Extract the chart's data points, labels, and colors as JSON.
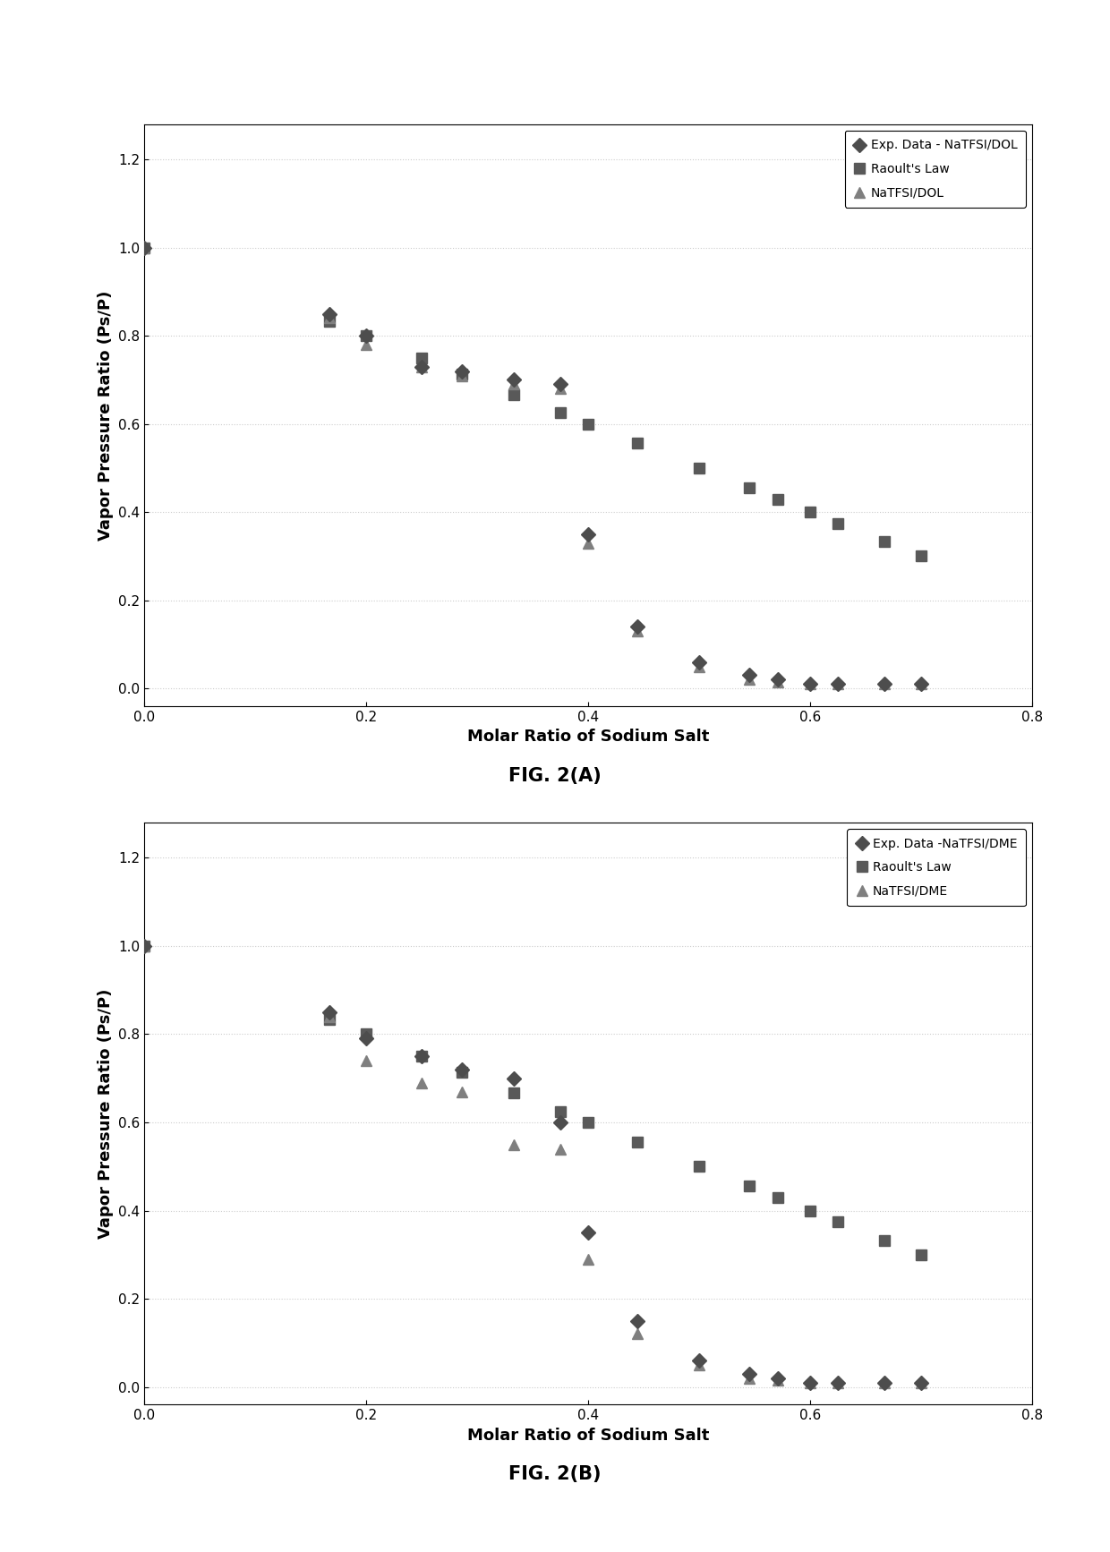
{
  "fig_width": 12.4,
  "fig_height": 17.34,
  "background_color": "#ffffff",
  "chartA": {
    "legend1_label": "Exp. Data - NaTFSI/DOL",
    "legend2_label": "Raoult's Law",
    "legend3_label": "NaTFSI/DOL",
    "xlabel": "Molar Ratio of Sodium Salt",
    "ylabel": "Vapor Pressure Ratio (Ps/P)",
    "xlim": [
      0,
      0.8
    ],
    "ylim": [
      -0.04,
      1.28
    ],
    "xticks": [
      0,
      0.2,
      0.4,
      0.6,
      0.8
    ],
    "yticks": [
      0,
      0.2,
      0.4,
      0.6,
      0.8,
      1.0,
      1.2
    ],
    "exp_x": [
      0.0,
      0.167,
      0.2,
      0.25,
      0.286,
      0.333,
      0.375,
      0.4,
      0.444,
      0.5,
      0.545,
      0.571,
      0.6,
      0.625,
      0.667,
      0.7
    ],
    "exp_y": [
      1.0,
      0.85,
      0.8,
      0.73,
      0.72,
      0.7,
      0.69,
      0.35,
      0.14,
      0.06,
      0.03,
      0.02,
      0.01,
      0.01,
      0.01,
      0.01
    ],
    "raoult_x": [
      0.0,
      0.167,
      0.2,
      0.25,
      0.286,
      0.333,
      0.375,
      0.4,
      0.444,
      0.5,
      0.545,
      0.571,
      0.6,
      0.625,
      0.667,
      0.7
    ],
    "raoult_y": [
      1.0,
      0.833,
      0.8,
      0.75,
      0.714,
      0.667,
      0.625,
      0.6,
      0.556,
      0.5,
      0.455,
      0.429,
      0.4,
      0.375,
      0.333,
      0.3
    ],
    "sim_x": [
      0.0,
      0.167,
      0.2,
      0.25,
      0.286,
      0.333,
      0.375,
      0.4,
      0.444,
      0.5,
      0.545,
      0.571,
      0.6,
      0.625,
      0.667,
      0.7
    ],
    "sim_y": [
      1.0,
      0.84,
      0.78,
      0.73,
      0.71,
      0.69,
      0.68,
      0.33,
      0.13,
      0.05,
      0.02,
      0.015,
      0.01,
      0.01,
      0.01,
      0.01
    ]
  },
  "chartB": {
    "legend1_label": "Exp. Data -NaTFSI/DME",
    "legend2_label": "Raoult's Law",
    "legend3_label": "NaTFSI/DME",
    "xlabel": "Molar Ratio of Sodium Salt",
    "ylabel": "Vapor Pressure Ratio (Ps/P)",
    "xlim": [
      0,
      0.8
    ],
    "ylim": [
      -0.04,
      1.28
    ],
    "xticks": [
      0,
      0.2,
      0.4,
      0.6,
      0.8
    ],
    "yticks": [
      0,
      0.2,
      0.4,
      0.6,
      0.8,
      1.0,
      1.2
    ],
    "exp_x": [
      0.0,
      0.167,
      0.2,
      0.25,
      0.286,
      0.333,
      0.375,
      0.4,
      0.444,
      0.5,
      0.545,
      0.571,
      0.6,
      0.625,
      0.667,
      0.7
    ],
    "exp_y": [
      1.0,
      0.85,
      0.79,
      0.75,
      0.72,
      0.7,
      0.6,
      0.35,
      0.15,
      0.06,
      0.03,
      0.02,
      0.01,
      0.01,
      0.01,
      0.01
    ],
    "raoult_x": [
      0.0,
      0.167,
      0.2,
      0.25,
      0.286,
      0.333,
      0.375,
      0.4,
      0.444,
      0.5,
      0.545,
      0.571,
      0.6,
      0.625,
      0.667,
      0.7
    ],
    "raoult_y": [
      1.0,
      0.833,
      0.8,
      0.75,
      0.714,
      0.667,
      0.625,
      0.6,
      0.556,
      0.5,
      0.455,
      0.429,
      0.4,
      0.375,
      0.333,
      0.3
    ],
    "sim_x": [
      0.0,
      0.167,
      0.2,
      0.25,
      0.286,
      0.333,
      0.375,
      0.4,
      0.444,
      0.5,
      0.545,
      0.571,
      0.6,
      0.625,
      0.667,
      0.7
    ],
    "sim_y": [
      1.0,
      0.84,
      0.74,
      0.69,
      0.67,
      0.55,
      0.54,
      0.29,
      0.12,
      0.05,
      0.02,
      0.015,
      0.01,
      0.01,
      0.01,
      0.01
    ]
  },
  "exp_color": "#4d4d4d",
  "raoult_color": "#595959",
  "sim_color": "#7f7f7f",
  "exp_marker": "D",
  "raoult_marker": "s",
  "sim_marker": "^",
  "marker_size": 8,
  "font_size_label": 13,
  "font_size_tick": 11,
  "font_size_legend": 10,
  "font_size_caption": 15,
  "grid_color": "#cccccc",
  "grid_style": "dotted",
  "caption_A": "FIG. 2(A)",
  "caption_B": "FIG. 2(B)"
}
